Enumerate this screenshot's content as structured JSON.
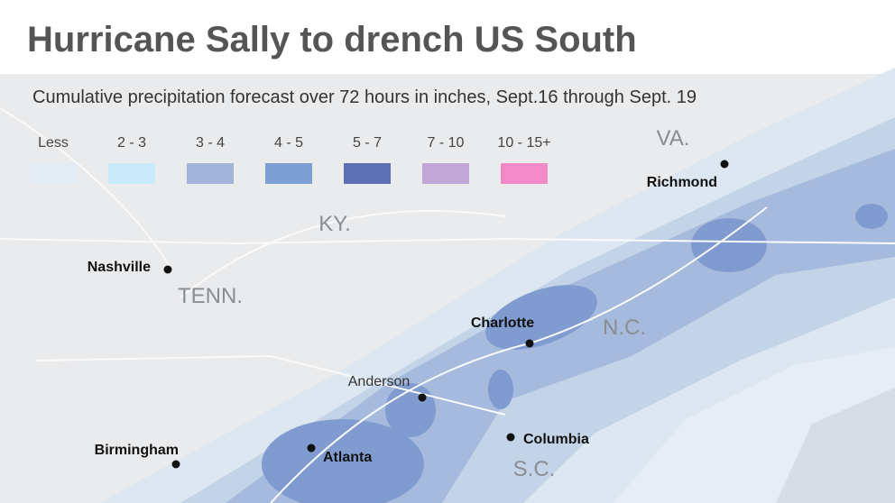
{
  "title": "Hurricane Sally to drench US South",
  "subtitle": "Cumulative precipitation forecast over 72 hours in inches,  Sept.16 through Sept. 19",
  "legend": [
    {
      "label": "Less",
      "color": "#e3ebf4"
    },
    {
      "label": "2 - 3",
      "color": "#c9eaf9"
    },
    {
      "label": "3 - 4",
      "color": "#a2b4d7"
    },
    {
      "label": "4 - 5",
      "color": "#7ca0d4"
    },
    {
      "label": "5 - 7",
      "color": "#5b70b5"
    },
    {
      "label": "7 - 10",
      "color": "#c2a7d6"
    },
    {
      "label": "10 - 15+",
      "color": "#f28ac8"
    }
  ],
  "states": [
    "VA.",
    "KY.",
    "TENN.",
    "N.C.",
    "S.C."
  ],
  "cities": [
    "Richmond",
    "Nashville",
    "Charlotte",
    "Anderson",
    "Atlanta",
    "Birmingham",
    "Columbia"
  ]
}
